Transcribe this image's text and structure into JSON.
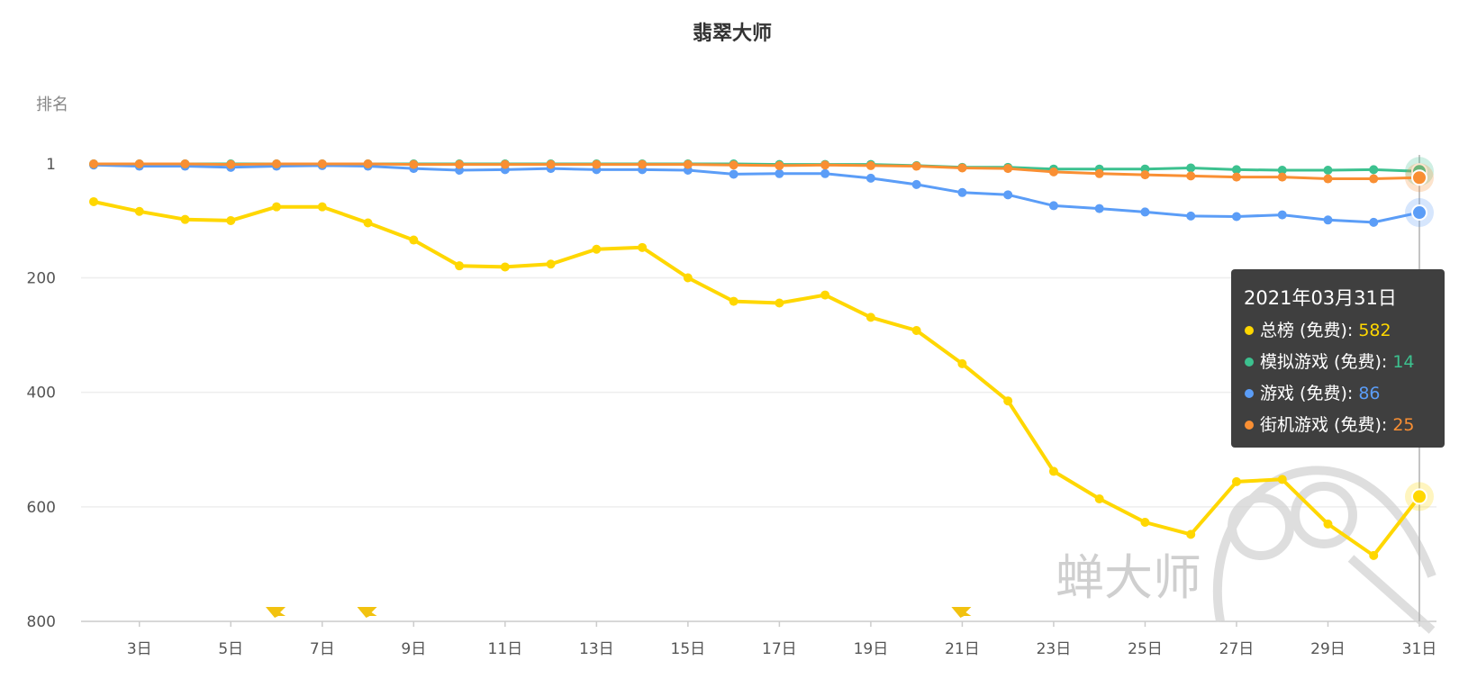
{
  "chart_data": {
    "type": "line",
    "title": "翡翠大师",
    "ylabel": "排名",
    "y_inverted": true,
    "ylim": [
      1,
      800
    ],
    "y_ticks": [
      {
        "value": 1,
        "label": "1"
      },
      {
        "value": 200,
        "label": "200"
      },
      {
        "value": 400,
        "label": "400"
      },
      {
        "value": 600,
        "label": "600"
      },
      {
        "value": 800,
        "label": "800"
      }
    ],
    "x": [
      "2日",
      "3日",
      "4日",
      "5日",
      "6日",
      "7日",
      "8日",
      "9日",
      "10日",
      "11日",
      "12日",
      "13日",
      "14日",
      "15日",
      "16日",
      "17日",
      "18日",
      "19日",
      "20日",
      "21日",
      "22日",
      "23日",
      "24日",
      "25日",
      "26日",
      "27日",
      "28日",
      "29日",
      "30日",
      "31日"
    ],
    "x_tick_labels": [
      "3日",
      "5日",
      "7日",
      "9日",
      "11日",
      "13日",
      "15日",
      "17日",
      "19日",
      "21日",
      "23日",
      "25日",
      "27日",
      "29日",
      "31日"
    ],
    "grid": "horizontal",
    "series": [
      {
        "name": "总榜 (免费)",
        "color": "#FFD700",
        "values": [
          67,
          84,
          98,
          100,
          76,
          76,
          104,
          134,
          179,
          181,
          176,
          150,
          147,
          200,
          241,
          244,
          230,
          269,
          292,
          350,
          415,
          538,
          586,
          627,
          648,
          556,
          552,
          630,
          685,
          582
        ]
      },
      {
        "name": "模拟游戏 (免费)",
        "color": "#3CC18F",
        "values": [
          1,
          1,
          1,
          1,
          1,
          1,
          1,
          1,
          1,
          1,
          1,
          1,
          1,
          1,
          1,
          2,
          2,
          2,
          4,
          7,
          7,
          10,
          10,
          10,
          8,
          11,
          12,
          12,
          11,
          14
        ]
      },
      {
        "name": "游戏 (免费)",
        "color": "#5B9DF7",
        "values": [
          3,
          5,
          5,
          7,
          5,
          4,
          5,
          9,
          12,
          11,
          9,
          11,
          11,
          12,
          19,
          18,
          18,
          26,
          37,
          51,
          55,
          74,
          79,
          85,
          92,
          93,
          90,
          99,
          103,
          86
        ]
      },
      {
        "name": "街机游戏 (免费)",
        "color": "#F98F33",
        "values": [
          1,
          1,
          1,
          2,
          1,
          1,
          1,
          2,
          2,
          2,
          2,
          2,
          2,
          2,
          3,
          4,
          3,
          4,
          5,
          8,
          9,
          15,
          18,
          20,
          22,
          24,
          24,
          27,
          27,
          25
        ]
      }
    ],
    "flag_markers": [
      "6日",
      "8日",
      "21日"
    ],
    "flag_color": "#F2C20F",
    "tooltip": {
      "date": "2021年03月31日",
      "items": [
        {
          "label": "总榜 (免费): ",
          "value": "582",
          "color": "#FFD700"
        },
        {
          "label": "模拟游戏 (免费): ",
          "value": "14",
          "color": "#3CC18F"
        },
        {
          "label": "游戏 (免费): ",
          "value": "86",
          "color": "#5B9DF7"
        },
        {
          "label": "街机游戏 (免费): ",
          "value": "25",
          "color": "#F98F33"
        }
      ]
    },
    "watermark": "蝉大师",
    "highlight_index": 29
  }
}
